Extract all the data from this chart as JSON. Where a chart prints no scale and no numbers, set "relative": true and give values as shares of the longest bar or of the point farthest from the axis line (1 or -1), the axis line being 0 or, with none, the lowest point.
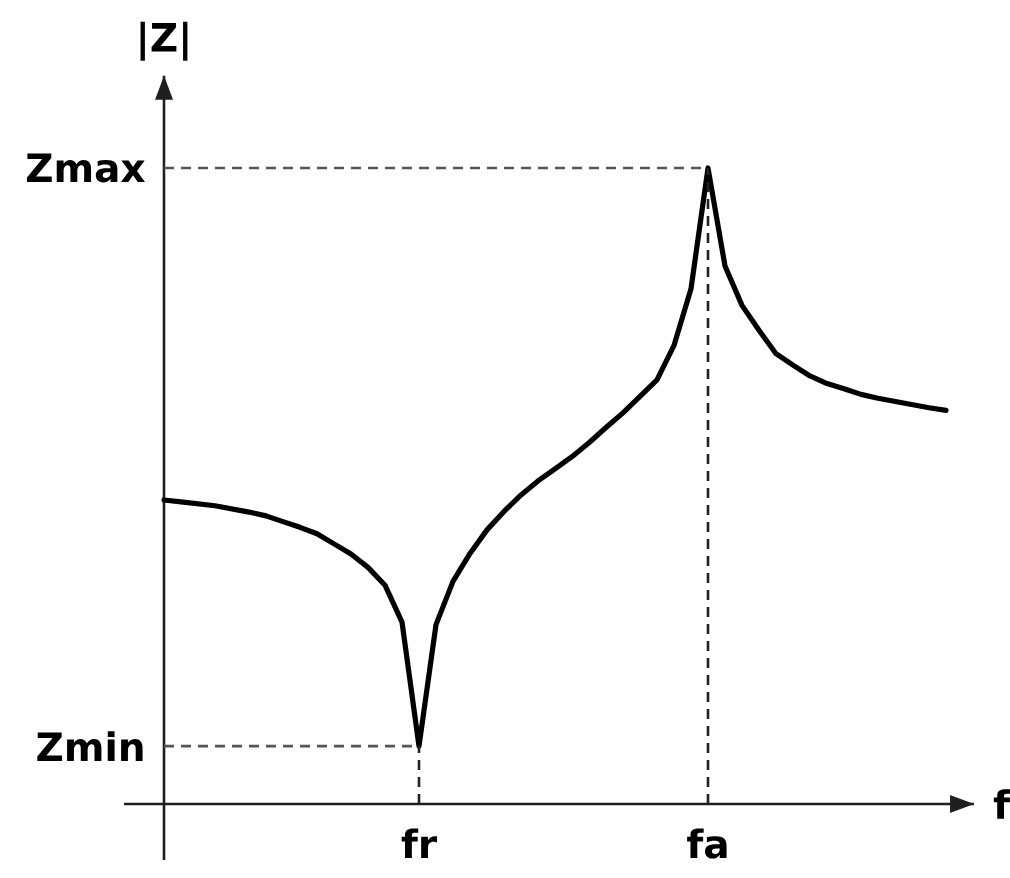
{
  "chart_data": {
    "type": "line",
    "relative": true,
    "xlabel": "f",
    "ylabel": "|Z|",
    "categories": [
      null,
      null,
      null,
      null,
      null,
      null,
      null,
      null,
      null,
      null,
      null,
      null,
      null,
      null,
      null,
      "fr",
      null,
      null,
      null,
      null,
      null,
      null,
      null,
      null,
      null,
      null,
      null,
      null,
      null,
      null,
      null,
      null,
      "fa",
      null,
      null,
      null,
      null,
      null,
      null,
      null,
      null,
      null,
      null,
      null,
      null,
      null,
      null
    ],
    "values": [
      0.478,
      0.475,
      0.472,
      0.469,
      0.464,
      0.459,
      0.453,
      0.444,
      0.435,
      0.425,
      0.409,
      0.393,
      0.372,
      0.344,
      0.286,
      0.091,
      0.282,
      0.35,
      0.394,
      0.431,
      0.46,
      0.486,
      0.508,
      0.527,
      0.546,
      0.568,
      0.592,
      0.615,
      0.641,
      0.667,
      0.721,
      0.81,
      1,
      0.846,
      0.784,
      0.745,
      0.708,
      0.69,
      0.673,
      0.661,
      0.653,
      0.644,
      0.638,
      0.633,
      0.628,
      0.623,
      0.619
    ],
    "color": "#000000",
    "ref_lines": [
      {
        "axis": "y",
        "value": 1,
        "label": "Zmax",
        "line_style": "dashed",
        "color": "#555555"
      },
      {
        "axis": "y",
        "value": 0.091,
        "label": "Zmin",
        "line_style": "dashed",
        "color": "#555555"
      },
      {
        "axis": "x",
        "value": "fa",
        "line_style": "dashed",
        "color": "#222222"
      },
      {
        "axis": "x",
        "value": "fr",
        "line_style": "dashed",
        "color": "#222222"
      }
    ]
  }
}
